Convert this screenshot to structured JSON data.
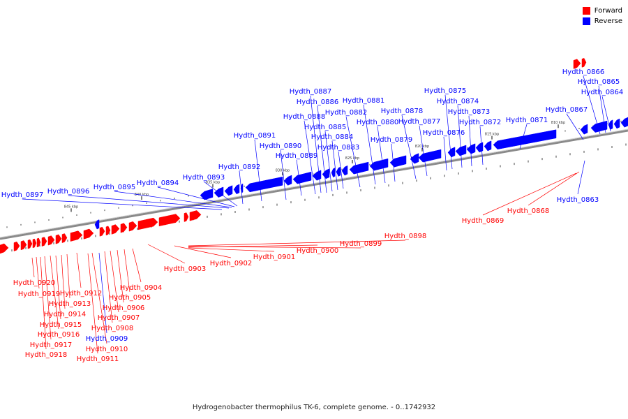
{
  "legend": {
    "forward_label": "Forward",
    "reverse_label": "Reverse",
    "forward_color": "#ff0000",
    "reverse_color": "#0000ff"
  },
  "caption": "Hydrogenobacter thermophilus TK-6, complete genome. - 0..1742932",
  "axis": {
    "unit": "kbp",
    "ticks": [
      {
        "label": "810 kbp"
      },
      {
        "label": "815 kbp"
      },
      {
        "label": "820 kbp"
      },
      {
        "label": "825 kbp"
      },
      {
        "label": "830 kbp"
      },
      {
        "label": "835 kbp"
      },
      {
        "label": "840 kbp"
      },
      {
        "label": "845 kbp"
      }
    ]
  },
  "reverse_genes": [
    "Hydth_0863",
    "Hydth_0864",
    "Hydth_0865",
    "Hydth_0866",
    "Hydth_0867",
    "Hydth_0871",
    "Hydth_0872",
    "Hydth_0873",
    "Hydth_0874",
    "Hydth_0875",
    "Hydth_0876",
    "Hydth_0877",
    "Hydth_0878",
    "Hydth_0879",
    "Hydth_0880",
    "Hydth_0881",
    "Hydth_0882",
    "Hydth_0883",
    "Hydth_0884",
    "Hydth_0885",
    "Hydth_0886",
    "Hydth_0887",
    "Hydth_0888",
    "Hydth_0889",
    "Hydth_0890",
    "Hydth_0891",
    "Hydth_0892",
    "Hydth_0893",
    "Hydth_0894",
    "Hydth_0895",
    "Hydth_0896",
    "Hydth_0897",
    "Hydth_0909"
  ],
  "forward_genes": [
    "Hydth_0868",
    "Hydth_0869",
    "Hydth_0898",
    "Hydth_0899",
    "Hydth_0900",
    "Hydth_0901",
    "Hydth_0902",
    "Hydth_0903",
    "Hydth_0904",
    "Hydth_0905",
    "Hydth_0906",
    "Hydth_0907",
    "Hydth_0908",
    "Hydth_0910",
    "Hydth_0911",
    "Hydth_0912",
    "Hydth_0913",
    "Hydth_0914",
    "Hydth_0915",
    "Hydth_0916",
    "Hydth_0917",
    "Hydth_0918",
    "Hydth_0919",
    "Hydth_0920"
  ]
}
